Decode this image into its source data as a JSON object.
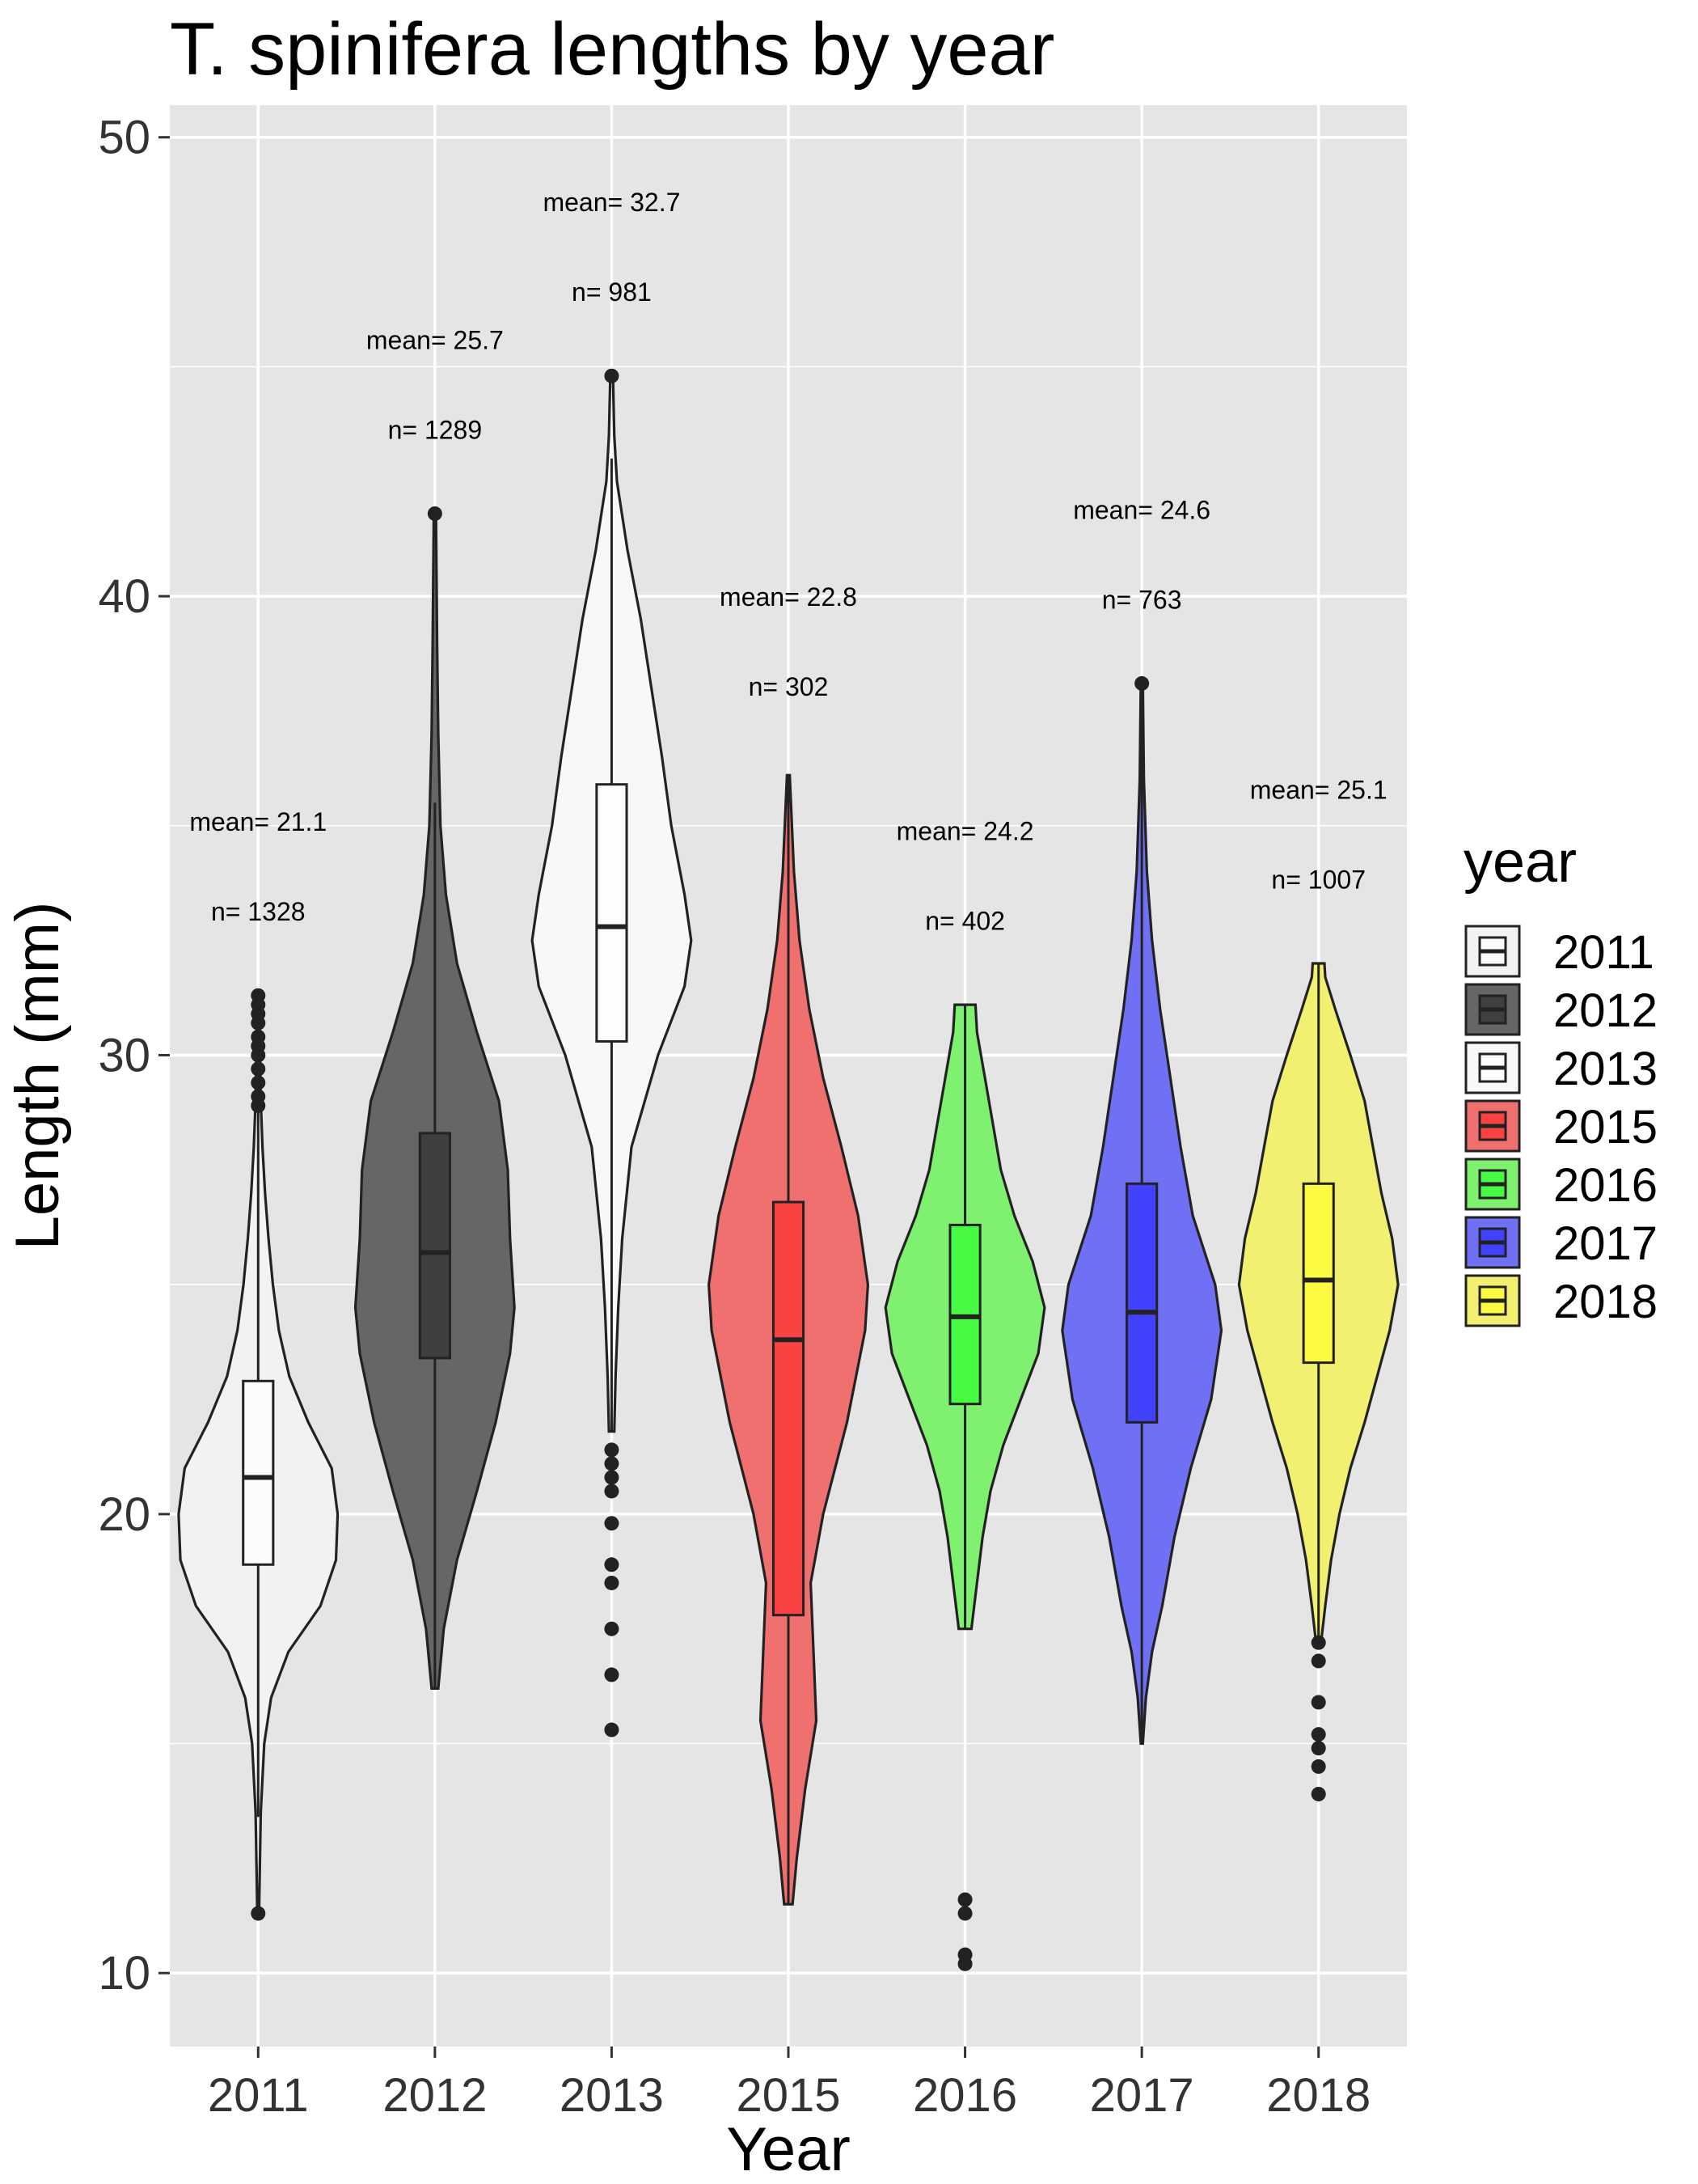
{
  "chart_data": {
    "type": "violin",
    "title": "T. spinifera lengths by year",
    "xlabel": "Year",
    "ylabel": "Length (mm)",
    "ylim": [
      8.4,
      50.7
    ],
    "yticks": [
      10,
      20,
      30,
      40,
      50
    ],
    "grid": true,
    "legend": {
      "title": "year",
      "position": "right"
    },
    "categories": [
      "2011",
      "2012",
      "2013",
      "2015",
      "2016",
      "2017",
      "2018"
    ],
    "colors": [
      "#f2f2f2",
      "#666666",
      "#f8f8f8",
      "#f07070",
      "#80f070",
      "#7070f5",
      "#f2f070"
    ],
    "box_colors": [
      "#ffffff",
      "#333333",
      "#ffffff",
      "#ff3333",
      "#33ff33",
      "#3333ff",
      "#ffff33"
    ],
    "series": [
      {
        "year": "2011",
        "mean_label": "mean= 21.1",
        "n_label": "n= 1328",
        "label_y": 35.1,
        "min": 11.3,
        "max": 31.3,
        "q1": 18.9,
        "median": 20.8,
        "q3": 22.9,
        "whisker_low": 13.4,
        "whisker_high": 29.0,
        "outliers": [
          11.3,
          28.9,
          29.1,
          29.4,
          29.7,
          30.0,
          30.2,
          30.4,
          30.7,
          30.9,
          31.1,
          31.3
        ],
        "density": [
          [
            11.3,
            0.01
          ],
          [
            13.5,
            0.03
          ],
          [
            15.0,
            0.07
          ],
          [
            16.0,
            0.15
          ],
          [
            17.0,
            0.35
          ],
          [
            18.0,
            0.72
          ],
          [
            19.0,
            0.9
          ],
          [
            20.0,
            0.92
          ],
          [
            21.0,
            0.85
          ],
          [
            22.0,
            0.58
          ],
          [
            23.0,
            0.36
          ],
          [
            24.0,
            0.24
          ],
          [
            25.0,
            0.17
          ],
          [
            26.0,
            0.12
          ],
          [
            27.0,
            0.08
          ],
          [
            28.0,
            0.05
          ],
          [
            29.0,
            0.03
          ],
          [
            31.3,
            0.01
          ]
        ]
      },
      {
        "year": "2012",
        "mean_label": "mean= 25.7",
        "n_label": "n= 1289",
        "label_y": 45.6,
        "min": 16.2,
        "max": 41.8,
        "q1": 23.4,
        "median": 25.7,
        "q3": 28.3,
        "whisker_low": 16.2,
        "whisker_high": 35.5,
        "outliers": [
          41.8
        ],
        "density": [
          [
            16.2,
            0.03
          ],
          [
            17.5,
            0.08
          ],
          [
            19.0,
            0.2
          ],
          [
            20.5,
            0.38
          ],
          [
            22.0,
            0.55
          ],
          [
            23.5,
            0.68
          ],
          [
            24.5,
            0.72
          ],
          [
            26.0,
            0.68
          ],
          [
            27.5,
            0.66
          ],
          [
            29.0,
            0.58
          ],
          [
            30.5,
            0.38
          ],
          [
            32.0,
            0.2
          ],
          [
            33.5,
            0.1
          ],
          [
            35.0,
            0.05
          ],
          [
            37.0,
            0.03
          ],
          [
            39.0,
            0.02
          ],
          [
            41.8,
            0.01
          ]
        ]
      },
      {
        "year": "2013",
        "mean_label": "mean= 32.7",
        "n_label": "n= 981",
        "label_y": 48.6,
        "min": 15.3,
        "max": 44.8,
        "q1": 30.3,
        "median": 32.8,
        "q3": 35.9,
        "whisker_low": 21.8,
        "whisker_high": 43.0,
        "outliers": [
          15.3,
          16.5,
          17.5,
          18.5,
          18.9,
          19.8,
          20.5,
          20.8,
          21.1,
          21.4,
          44.8
        ],
        "density": [
          [
            21.8,
            0.02
          ],
          [
            23.0,
            0.03
          ],
          [
            24.5,
            0.05
          ],
          [
            26.0,
            0.08
          ],
          [
            28.0,
            0.15
          ],
          [
            30.0,
            0.35
          ],
          [
            31.5,
            0.55
          ],
          [
            32.5,
            0.6
          ],
          [
            33.5,
            0.55
          ],
          [
            35.0,
            0.45
          ],
          [
            36.5,
            0.38
          ],
          [
            38.0,
            0.3
          ],
          [
            39.5,
            0.22
          ],
          [
            41.0,
            0.12
          ],
          [
            42.5,
            0.04
          ],
          [
            43.5,
            0.02
          ],
          [
            44.8,
            0.01
          ]
        ]
      },
      {
        "year": "2015",
        "mean_label": "mean= 22.8",
        "n_label": "n= 302",
        "label_y": 40.0,
        "min": 11.5,
        "max": 36.1,
        "q1": 17.8,
        "median": 23.8,
        "q3": 26.8,
        "whisker_low": 11.5,
        "whisker_high": 36.1,
        "outliers": [],
        "density": [
          [
            11.5,
            0.03
          ],
          [
            12.5,
            0.06
          ],
          [
            14.0,
            0.12
          ],
          [
            15.5,
            0.2
          ],
          [
            17.0,
            0.18
          ],
          [
            18.5,
            0.16
          ],
          [
            20.0,
            0.25
          ],
          [
            22.0,
            0.42
          ],
          [
            24.0,
            0.55
          ],
          [
            25.0,
            0.57
          ],
          [
            26.5,
            0.5
          ],
          [
            28.0,
            0.38
          ],
          [
            29.5,
            0.25
          ],
          [
            31.0,
            0.15
          ],
          [
            32.5,
            0.08
          ],
          [
            34.0,
            0.04
          ],
          [
            36.1,
            0.01
          ]
        ]
      },
      {
        "year": "2016",
        "mean_label": "mean= 24.2",
        "n_label": "n= 402",
        "label_y": 34.9,
        "min": 10.2,
        "max": 31.1,
        "q1": 22.4,
        "median": 24.3,
        "q3": 26.3,
        "whisker_low": 17.5,
        "whisker_high": 31.1,
        "outliers": [
          10.2,
          10.4,
          11.3,
          11.6
        ],
        "density": [
          [
            17.5,
            0.08
          ],
          [
            18.5,
            0.15
          ],
          [
            19.5,
            0.22
          ],
          [
            20.5,
            0.32
          ],
          [
            21.5,
            0.48
          ],
          [
            22.5,
            0.7
          ],
          [
            23.5,
            0.92
          ],
          [
            24.5,
            1.0
          ],
          [
            25.5,
            0.85
          ],
          [
            26.5,
            0.62
          ],
          [
            27.5,
            0.45
          ],
          [
            28.5,
            0.35
          ],
          [
            29.5,
            0.25
          ],
          [
            30.5,
            0.15
          ],
          [
            31.1,
            0.13
          ]
        ]
      },
      {
        "year": "2017",
        "mean_label": "mean= 24.6",
        "n_label": "n= 763",
        "label_y": 41.9,
        "min": 15.0,
        "max": 38.1,
        "q1": 22.0,
        "median": 24.4,
        "q3": 27.2,
        "whisker_low": 15.0,
        "whisker_high": 38.1,
        "outliers": [
          38.1
        ],
        "density": [
          [
            15.0,
            0.01
          ],
          [
            16.0,
            0.04
          ],
          [
            17.0,
            0.1
          ],
          [
            18.0,
            0.2
          ],
          [
            19.5,
            0.32
          ],
          [
            21.0,
            0.48
          ],
          [
            22.5,
            0.68
          ],
          [
            24.0,
            0.78
          ],
          [
            25.0,
            0.72
          ],
          [
            26.5,
            0.5
          ],
          [
            28.0,
            0.38
          ],
          [
            29.5,
            0.28
          ],
          [
            31.0,
            0.18
          ],
          [
            32.5,
            0.1
          ],
          [
            34.0,
            0.05
          ],
          [
            36.0,
            0.02
          ],
          [
            38.1,
            0.01
          ]
        ]
      },
      {
        "year": "2018",
        "mean_label": "mean= 25.1",
        "n_label": "n= 1007",
        "label_y": 35.8,
        "min": 13.9,
        "max": 32.0,
        "q1": 23.3,
        "median": 25.1,
        "q3": 27.2,
        "whisker_low": 17.2,
        "whisker_high": 32.0,
        "outliers": [
          13.9,
          14.5,
          14.9,
          15.2,
          15.9,
          16.8,
          17.2
        ],
        "density": [
          [
            17.2,
            0.03
          ],
          [
            18.0,
            0.08
          ],
          [
            19.0,
            0.15
          ],
          [
            20.0,
            0.25
          ],
          [
            21.0,
            0.38
          ],
          [
            22.0,
            0.55
          ],
          [
            23.0,
            0.7
          ],
          [
            24.0,
            0.85
          ],
          [
            25.0,
            0.95
          ],
          [
            26.0,
            0.88
          ],
          [
            27.0,
            0.75
          ],
          [
            28.0,
            0.65
          ],
          [
            29.0,
            0.55
          ],
          [
            30.0,
            0.38
          ],
          [
            31.0,
            0.2
          ],
          [
            31.7,
            0.08
          ],
          [
            32.0,
            0.07
          ]
        ]
      }
    ]
  }
}
